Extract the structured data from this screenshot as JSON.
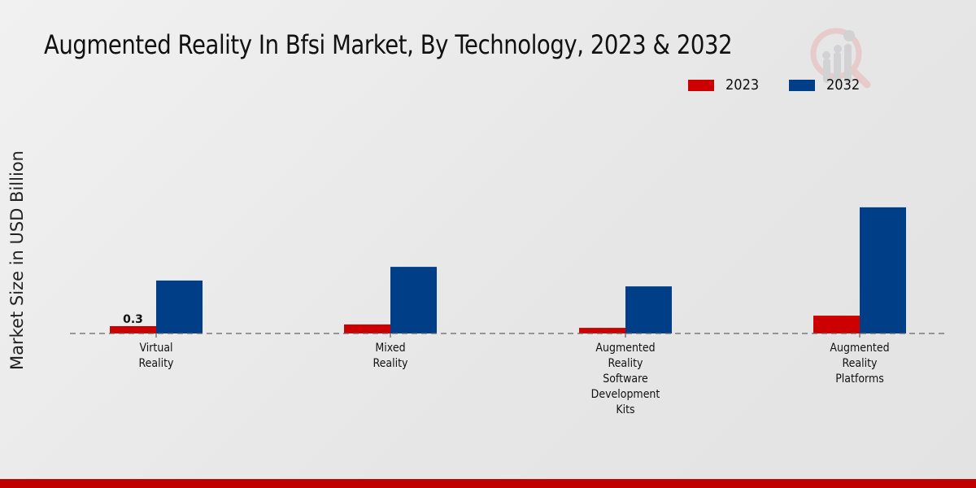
{
  "title": "Augmented Reality In Bfsi Market, By Technology, 2023 & 2032",
  "logo_icon": "market-research-magnifier-chart-icon",
  "legend": [
    {
      "label": "2023",
      "color": "#cc0000"
    },
    {
      "label": "2032",
      "color": "#003f87"
    }
  ],
  "chart_data": {
    "type": "bar",
    "title": "Augmented Reality In Bfsi Market, By Technology, 2023 & 2032",
    "xlabel": "",
    "ylabel": "Market Size in USD Billion",
    "categories": [
      "Virtual Reality",
      "Mixed Reality",
      "Augmented Reality Software Development Kits",
      "Augmented Reality Platforms"
    ],
    "category_lines": [
      [
        "Virtual",
        "Reality"
      ],
      [
        "Mixed",
        "Reality"
      ],
      [
        "Augmented",
        "Reality",
        "Software",
        "Development",
        "Kits"
      ],
      [
        "Augmented",
        "Reality",
        "Platforms"
      ]
    ],
    "series": [
      {
        "name": "2023",
        "color": "#cc0000",
        "values": [
          0.3,
          0.37,
          0.23,
          0.73
        ]
      },
      {
        "name": "2032",
        "color": "#003f87",
        "values": [
          2.17,
          2.73,
          1.93,
          5.17
        ]
      }
    ],
    "data_labels": [
      {
        "series": 0,
        "index": 0,
        "text": "0.3"
      }
    ],
    "ylim": [
      0,
      6.5
    ],
    "grid": false,
    "baseline_style": "dashed",
    "legend_position": "top-right"
  },
  "footer_color": "#c00000"
}
